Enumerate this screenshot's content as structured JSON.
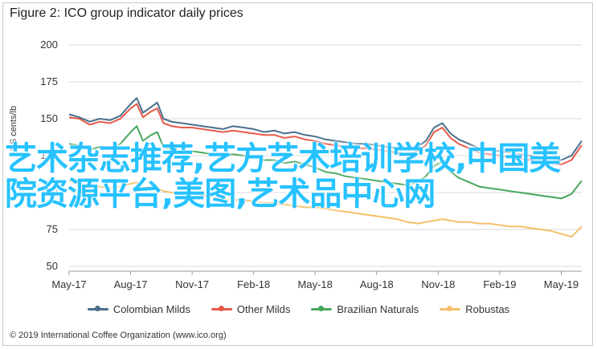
{
  "page_title": "Figure 2: ICO group indicator daily prices",
  "footnote": "© 2019 International Coffee Organization (www.ico.org)",
  "overlay_text": "艺术杂志推荐,艺方艺术培训学校,中国美院资源平台,美图,艺术品中心网",
  "colors": {
    "colombian": "#4a6f8c",
    "other": "#e8594a",
    "brazilian": "#47a75c",
    "robustas": "#f5c06a",
    "overlay": "#27c2ff"
  },
  "chart_data": {
    "type": "line",
    "title": "Figure 2: ICO group indicator daily prices",
    "ylabel": "US cents/lb",
    "xlabel": "",
    "ylim": [
      50,
      200
    ],
    "yticks": [
      50,
      75,
      100,
      125,
      150,
      175,
      200
    ],
    "grid": "horizontal",
    "legend_position": "bottom",
    "xlim": [
      0,
      25
    ],
    "x_ticks": [
      {
        "x": 0,
        "label": "May-17"
      },
      {
        "x": 3,
        "label": "Aug-17"
      },
      {
        "x": 6,
        "label": "Nov-17"
      },
      {
        "x": 9,
        "label": "Feb-18"
      },
      {
        "x": 12,
        "label": "May-18"
      },
      {
        "x": 15,
        "label": "Aug-18"
      },
      {
        "x": 18,
        "label": "Nov-18"
      },
      {
        "x": 21,
        "label": "Feb-19"
      },
      {
        "x": 24,
        "label": "May-19"
      }
    ],
    "series": [
      {
        "name": "Colombian Milds",
        "color": "#4a6f8c",
        "x": [
          0,
          0.5,
          1,
          1.5,
          2,
          2.5,
          3,
          3.3,
          3.6,
          4,
          4.3,
          4.6,
          5,
          5.5,
          6,
          6.5,
          7,
          7.5,
          8,
          8.5,
          9,
          9.5,
          10,
          10.5,
          11,
          11.5,
          12,
          12.5,
          13,
          13.5,
          14,
          14.5,
          15,
          15.5,
          16,
          16.5,
          17,
          17.4,
          17.8,
          18.2,
          18.6,
          19,
          19.5,
          20,
          20.5,
          21,
          21.5,
          22,
          22.5,
          23,
          23.5,
          24,
          24.5,
          25
        ],
        "y": [
          153,
          151,
          148,
          150,
          149,
          152,
          160,
          164,
          154,
          158,
          161,
          150,
          148,
          147,
          146,
          145,
          144,
          143,
          145,
          144,
          143,
          141,
          142,
          140,
          141,
          139,
          138,
          136,
          135,
          134,
          133,
          133,
          132,
          131,
          130,
          129,
          131,
          135,
          144,
          147,
          140,
          136,
          133,
          130,
          129,
          128,
          127,
          126,
          125,
          124,
          123,
          122,
          125,
          135
        ]
      },
      {
        "name": "Other Milds",
        "color": "#e8594a",
        "x": [
          0,
          0.5,
          1,
          1.5,
          2,
          2.5,
          3,
          3.3,
          3.6,
          4,
          4.3,
          4.6,
          5,
          5.5,
          6,
          6.5,
          7,
          7.5,
          8,
          8.5,
          9,
          9.5,
          10,
          10.5,
          11,
          11.5,
          12,
          12.5,
          13,
          13.5,
          14,
          14.5,
          15,
          15.5,
          16,
          16.5,
          17,
          17.4,
          17.8,
          18.2,
          18.6,
          19,
          19.5,
          20,
          20.5,
          21,
          21.5,
          22,
          22.5,
          23,
          23.5,
          24,
          24.5,
          25
        ],
        "y": [
          151,
          150,
          146,
          148,
          147,
          150,
          157,
          160,
          151,
          155,
          157,
          147,
          145,
          144,
          144,
          143,
          142,
          141,
          142,
          141,
          140,
          139,
          139,
          137,
          138,
          136,
          135,
          133,
          132,
          131,
          130,
          130,
          129,
          128,
          127,
          126,
          128,
          132,
          141,
          144,
          137,
          133,
          130,
          127,
          126,
          125,
          124,
          123,
          122,
          121,
          120,
          119,
          122,
          132
        ]
      },
      {
        "name": "Brazilian Naturals",
        "color": "#47a75c",
        "x": [
          0,
          0.5,
          1,
          1.5,
          2,
          2.5,
          3,
          3.3,
          3.6,
          4,
          4.3,
          4.6,
          5,
          5.5,
          6,
          6.5,
          7,
          7.5,
          8,
          8.5,
          9,
          9.5,
          10,
          10.5,
          11,
          11.5,
          12,
          12.5,
          13,
          13.5,
          14,
          14.5,
          15,
          15.5,
          16,
          16.5,
          17,
          17.4,
          17.8,
          18.2,
          18.6,
          19,
          19.5,
          20,
          20.5,
          21,
          21.5,
          22,
          22.5,
          23,
          23.5,
          24,
          24.5,
          25
        ],
        "y": [
          133,
          132,
          129,
          131,
          130,
          133,
          141,
          145,
          135,
          139,
          141,
          131,
          129,
          128,
          128,
          127,
          126,
          125,
          126,
          125,
          124,
          122,
          122,
          120,
          121,
          119,
          117,
          114,
          113,
          111,
          110,
          109,
          108,
          107,
          106,
          105,
          107,
          111,
          118,
          121,
          114,
          110,
          107,
          104,
          103,
          102,
          101,
          100,
          99,
          98,
          97,
          96,
          99,
          108
        ]
      },
      {
        "name": "Robustas",
        "color": "#f5c06a",
        "x": [
          0,
          0.5,
          1,
          1.5,
          2,
          2.5,
          3,
          3.3,
          3.6,
          4,
          4.3,
          4.6,
          5,
          5.5,
          6,
          6.5,
          7,
          7.5,
          8,
          8.5,
          9,
          9.5,
          10,
          10.5,
          11,
          11.5,
          12,
          12.5,
          13,
          13.5,
          14,
          14.5,
          15,
          15.5,
          16,
          16.5,
          17,
          17.4,
          17.8,
          18.2,
          18.6,
          19,
          19.5,
          20,
          20.5,
          21,
          21.5,
          22,
          22.5,
          23,
          23.5,
          24,
          24.5,
          25
        ],
        "y": [
          108,
          106,
          103,
          104,
          103,
          104,
          106,
          107,
          103,
          104,
          103,
          101,
          100,
          99,
          99,
          98,
          97,
          96,
          95,
          95,
          94,
          93,
          93,
          92,
          91,
          90,
          90,
          89,
          88,
          87,
          86,
          85,
          84,
          83,
          82,
          80,
          79,
          80,
          81,
          82,
          81,
          80,
          80,
          79,
          79,
          78,
          77,
          77,
          76,
          75,
          74,
          72,
          70,
          77
        ]
      }
    ]
  }
}
